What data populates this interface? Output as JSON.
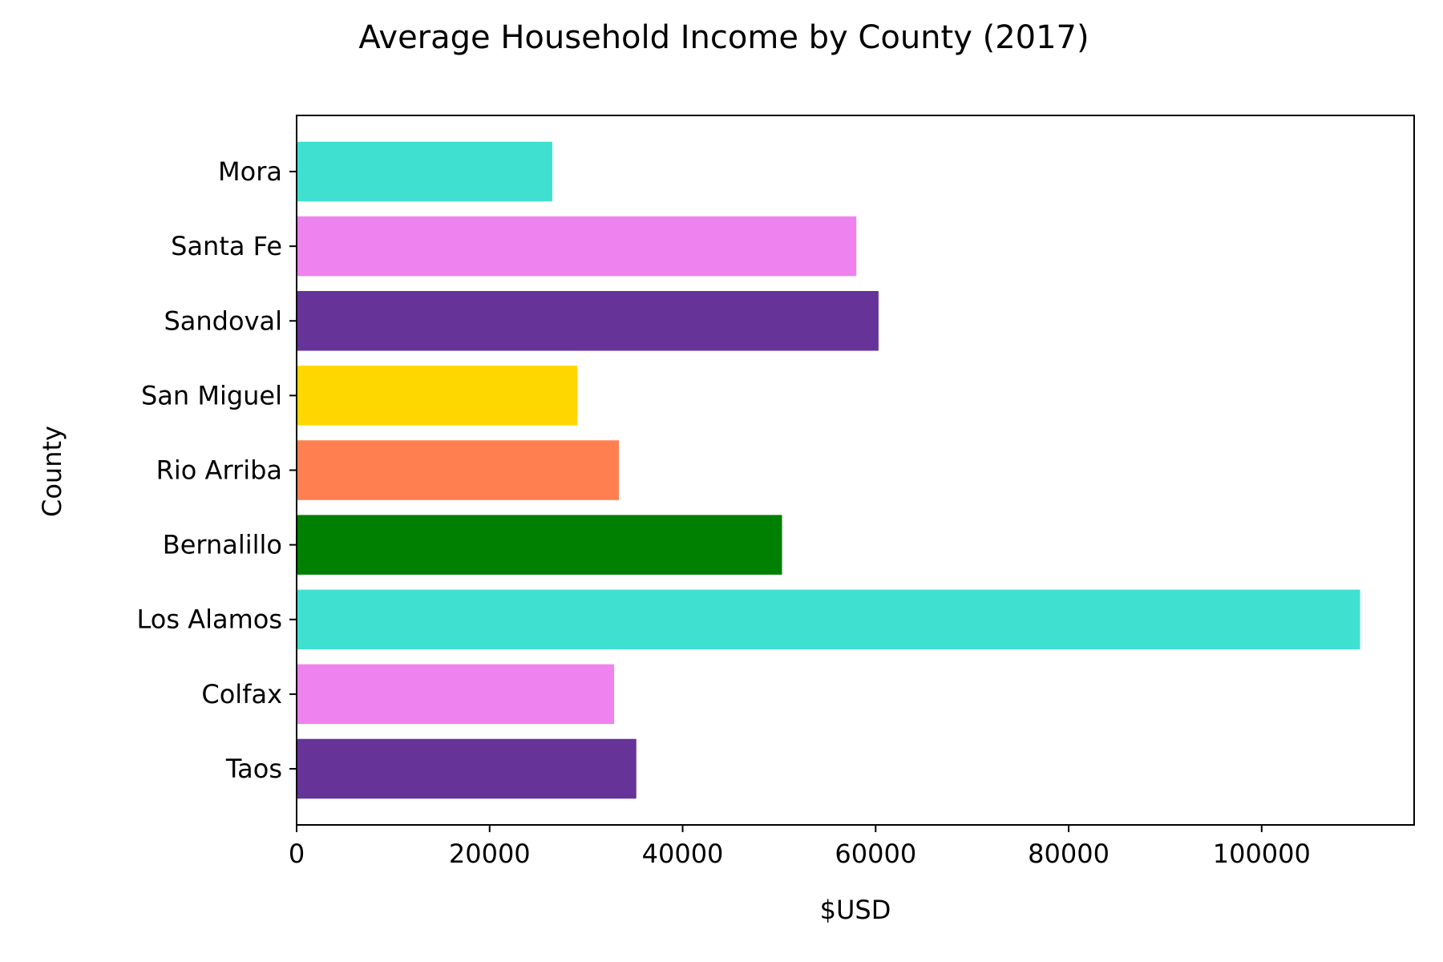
{
  "chart_data": {
    "type": "bar",
    "orientation": "horizontal",
    "title": "Average Household Income by County (2017)",
    "xlabel": "$USD",
    "ylabel": "County",
    "categories": [
      "Taos",
      "Colfax",
      "Los Alamos",
      "Bernalillo",
      "Rio Arriba",
      "San Miguel",
      "Sandoval",
      "Santa Fe",
      "Mora"
    ],
    "values": [
      35200,
      32900,
      110200,
      50300,
      33400,
      29100,
      60300,
      58000,
      26500
    ],
    "colors": [
      "#663399",
      "#EE82EE",
      "#40E0D0",
      "#008000",
      "#FF7F50",
      "#FFD700",
      "#663399",
      "#EE82EE",
      "#40E0D0"
    ],
    "xlim": [
      0,
      115800
    ],
    "xticks": [
      0,
      20000,
      40000,
      60000,
      80000,
      100000
    ],
    "xtick_labels": [
      "0",
      "20000",
      "40000",
      "60000",
      "80000",
      "100000"
    ],
    "grid": false,
    "legend": false
  }
}
